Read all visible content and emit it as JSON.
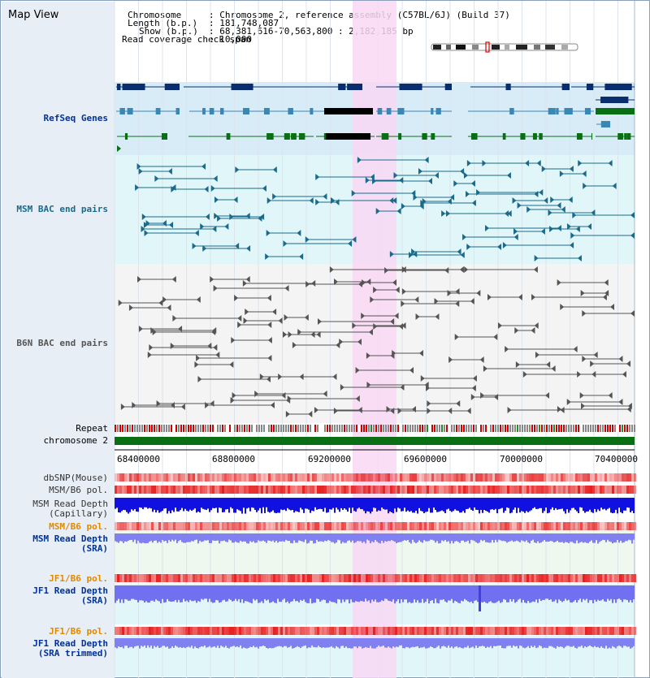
{
  "title": "Map View",
  "header": {
    "chromosome_label": "Chromosome",
    "chromosome_value": ": Chromosome 2, reference assembly (C57BL/6J) (Build 37)",
    "length_label": "Length (b.p.)",
    "length_value": ": 181,748,087",
    "show_label": "Show (b.p.)",
    "show_value": ": 68,381,616-70,563,800 : 2,182,185 bp",
    "coverage_label": "Read coverage check span",
    "coverage_value": ": 10,000"
  },
  "tracks": {
    "refseq": "RefSeq Genes",
    "msm_bac": "MSM BAC end pairs",
    "b6n_bac": "B6N BAC end pairs",
    "repeat": "Repeat",
    "chromosome": "chromosome 2",
    "dbsnp": "dbSNP(Mouse)",
    "msm_b6_pol": "MSM/B6 pol.",
    "msm_read_depth_cap_1": "MSM Read Depth",
    "msm_read_depth_cap_2": "(Capillary)",
    "msm_b6_pol_2": "MSM/B6 pol.",
    "msm_read_depth_sra_1": "MSM Read Depth",
    "msm_read_depth_sra_2": "(SRA)",
    "jf1_b6_pol": "JF1/B6 pol.",
    "jf1_read_depth_sra_1": "JF1 Read Depth",
    "jf1_read_depth_sra_2": "(SRA)",
    "jf1_b6_pol_2": "JF1/B6 pol.",
    "jf1_read_depth_trim_1": "JF1 Read Depth",
    "jf1_read_depth_trim_2": "(SRA trimmed)"
  },
  "axis": {
    "ticks": [
      "68400000",
      "68800000",
      "69200000",
      "69600000",
      "70000000",
      "70400000"
    ]
  },
  "colors": {
    "refseq_dark": "#0a2d6e",
    "refseq_mid": "#3a86b4",
    "refseq_green": "#0a6e14",
    "msm_bac": "#1a6a8a",
    "b6n_bac": "#555555",
    "highlight": "#f8d8f4",
    "label_blue": "#003399",
    "label_msm": "#1a6a8a",
    "label_orange": "#e08a00",
    "label_gray": "#555555"
  }
}
